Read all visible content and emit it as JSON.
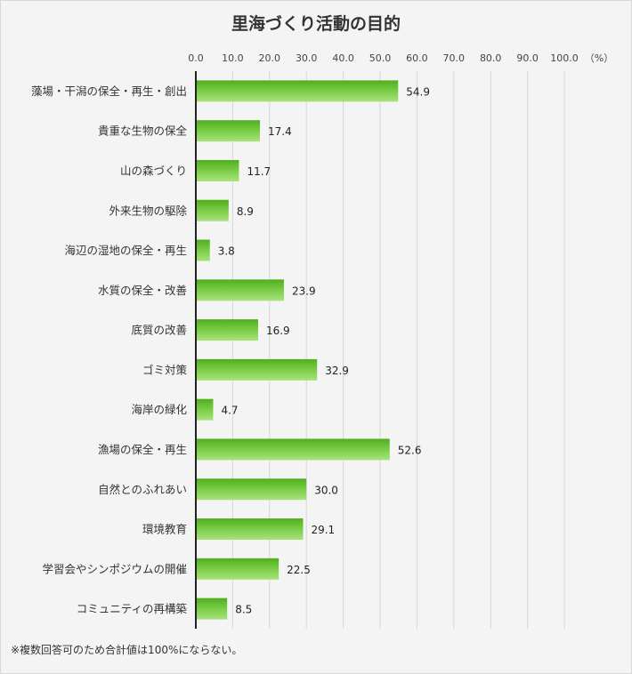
{
  "chart_data": {
    "type": "bar",
    "orientation": "horizontal",
    "title": "里海づくり活動の目的",
    "unit_label": "（%）",
    "xlim": [
      0,
      100
    ],
    "ticks": [
      "0.0",
      "10.0",
      "20.0",
      "30.0",
      "40.0",
      "50.0",
      "60.0",
      "70.0",
      "80.0",
      "90.0",
      "100.0"
    ],
    "categories": [
      "藻場・干潟の保全・再生・創出",
      "貴重な生物の保全",
      "山の森づくり",
      "外来生物の駆除",
      "海辺の湿地の保全・再生",
      "水質の保全・改善",
      "底質の改善",
      "ゴミ対策",
      "海岸の緑化",
      "漁場の保全・再生",
      "自然とのふれあい",
      "環境教育",
      "学習会やシンポジウムの開催",
      "コミュニティの再構築"
    ],
    "values": [
      54.9,
      17.4,
      11.7,
      8.9,
      3.8,
      23.9,
      16.9,
      32.9,
      4.7,
      52.6,
      30.0,
      29.1,
      22.5,
      8.5
    ],
    "value_labels": [
      "54.9",
      "17.4",
      "11.7",
      "8.9",
      "3.8",
      "23.9",
      "16.9",
      "32.9",
      "4.7",
      "52.6",
      "30.0",
      "29.1",
      "22.5",
      "8.5"
    ],
    "grid": true,
    "legend": "none",
    "bar_color": "#6cc73a"
  },
  "footnote": "※複数回答可のため合計値は100%にならない。"
}
